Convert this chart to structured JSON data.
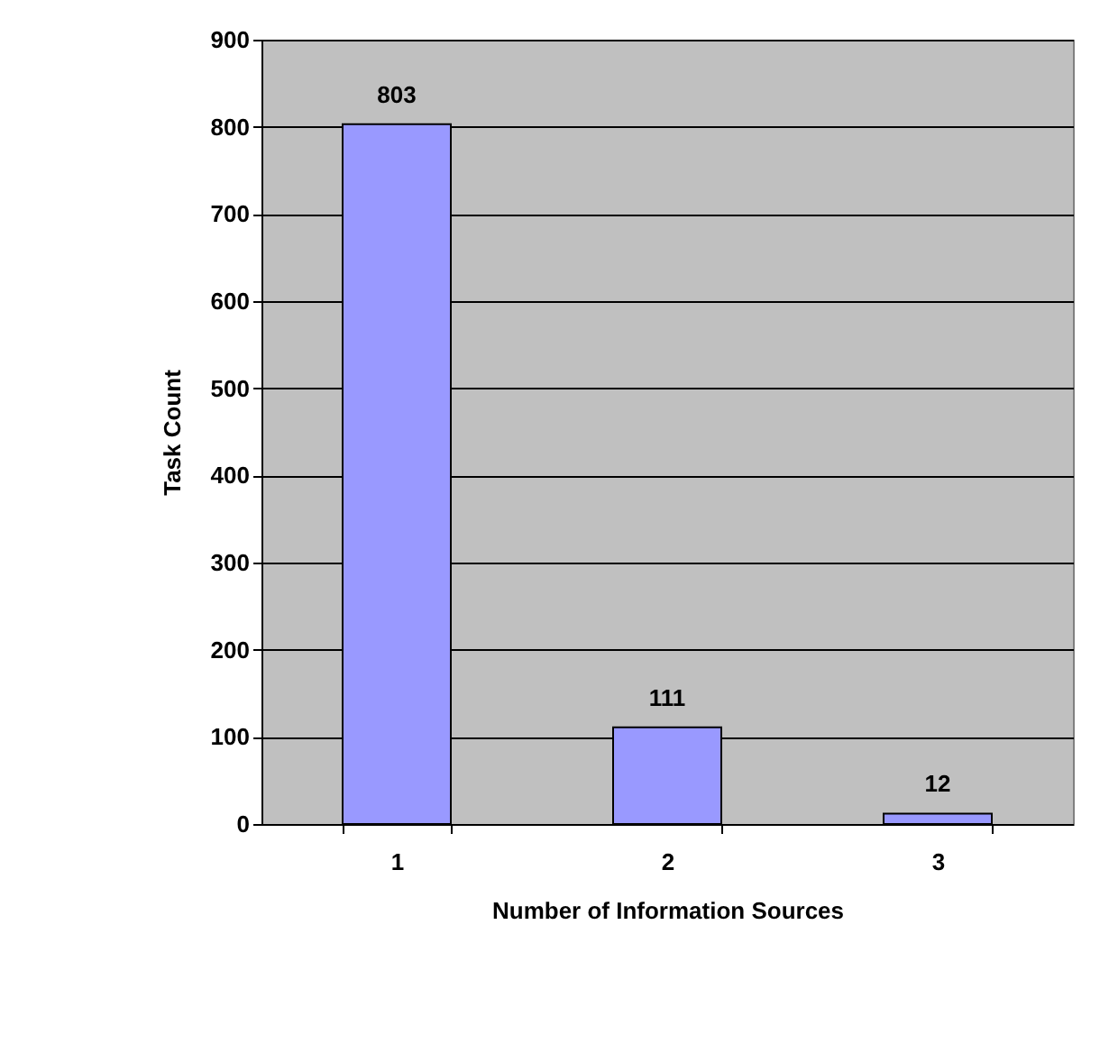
{
  "chart_data": {
    "type": "bar",
    "xlabel": "Number of Information Sources",
    "ylabel": "Task Count",
    "categories": [
      "1",
      "2",
      "3"
    ],
    "series": [
      {
        "color": "#9999ff",
        "values": [
          803,
          111,
          12
        ]
      }
    ],
    "ylim": [
      0,
      900
    ],
    "yticks": [
      0,
      100,
      200,
      300,
      400,
      500,
      600,
      700,
      800,
      900
    ],
    "grid": "y",
    "data_labels": true,
    "legend": false
  }
}
